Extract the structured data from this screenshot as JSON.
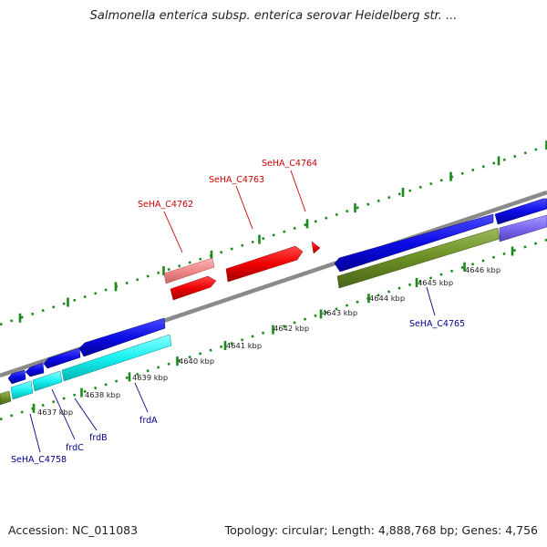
{
  "title": "Salmonella enterica subsp. enterica serovar Heidelberg str. ...",
  "footer": {
    "accession": "Accession: NC_011083",
    "topology": "Topology: circular; Length: 4,888,768 bp; Genes: 4,756"
  },
  "colors": {
    "backbone": "#8a8a8a",
    "forward_cds": "#1010e0",
    "reverse_cds_red": "#ee0000",
    "reverse_cds_pink": "#f08a8a",
    "cyan_cds": "#19f0f0",
    "olive_cds": "#6b8e23",
    "lavender_cds": "#7b68ee",
    "ticks": "#1a8a1a",
    "label_red": "#cc0000",
    "label_blue": "#00008b"
  },
  "kbp_labels": [
    "4637 kbp",
    "4638 kbp",
    "4639 kbp",
    "4640 kbp",
    "4641 kbp",
    "4642 kbp",
    "4643 kbp",
    "4644 kbp",
    "4645 kbp",
    "4646 kbp"
  ],
  "gene_labels_top": [
    "SeHA_C4762",
    "SeHA_C4763",
    "SeHA_C4764"
  ],
  "gene_labels_bottom": [
    "SeHA_C4758",
    "frdC",
    "frdB",
    "frdA",
    "SeHA_C4765"
  ]
}
